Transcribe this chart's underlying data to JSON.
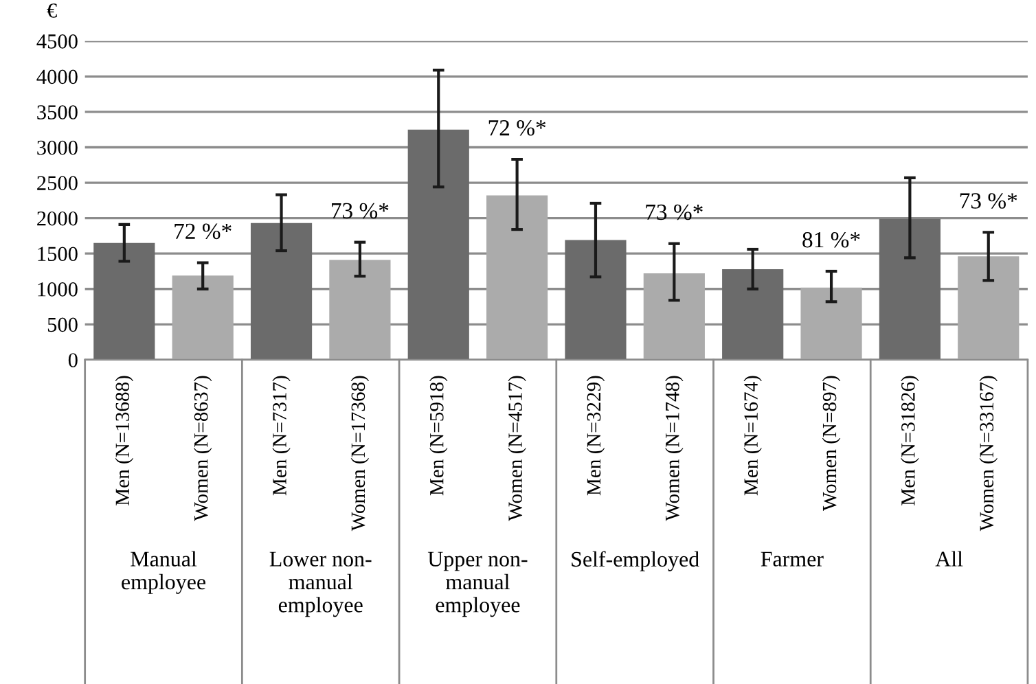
{
  "chart_data": {
    "type": "bar",
    "ylabel": "€",
    "categories": [
      "Men (N=13688)",
      "Women (N=8637)",
      "Men (N=7317)",
      "Women (N=17368)",
      "Men (N=5918)",
      "Women (N=4517)",
      "Men (N=3229)",
      "Women (N=1748)",
      "Men (N=1674)",
      "Women (N=897)",
      "Men (N=31826)",
      "Women (N=33167)"
    ],
    "values": [
      1650,
      1190,
      1930,
      1410,
      3250,
      2320,
      1690,
      1220,
      1280,
      1020,
      1990,
      1460
    ],
    "colors": [
      "#6b6b6b",
      "#ababab",
      "#6b6b6b",
      "#ababab",
      "#6b6b6b",
      "#ababab",
      "#6b6b6b",
      "#ababab",
      "#6b6b6b",
      "#ababab",
      "#6b6b6b",
      "#ababab"
    ],
    "errors": [
      [
        1390,
        1910
      ],
      [
        1000,
        1370
      ],
      [
        1540,
        2330
      ],
      [
        1180,
        1660
      ],
      [
        2440,
        4090
      ],
      [
        1840,
        2830
      ],
      [
        1170,
        2210
      ],
      [
        840,
        1640
      ],
      [
        1000,
        1560
      ],
      [
        820,
        1250
      ],
      [
        1440,
        2570
      ],
      [
        1120,
        1800
      ]
    ],
    "ylim": [
      0,
      4500
    ],
    "yticks": [
      0,
      500,
      1000,
      1500,
      2000,
      2500,
      3000,
      3500,
      4000,
      4500
    ],
    "grid": "y",
    "annotations": [
      "Manual\nemployee",
      "Lower non-\nmanual\nemployee",
      "Upper non-\nmanual\nemployee",
      "Self-employed",
      "Farmer",
      "All",
      "72 %*",
      "73 %*",
      "72 %*",
      "73 %*",
      "81 %*",
      "73 %*"
    ]
  }
}
